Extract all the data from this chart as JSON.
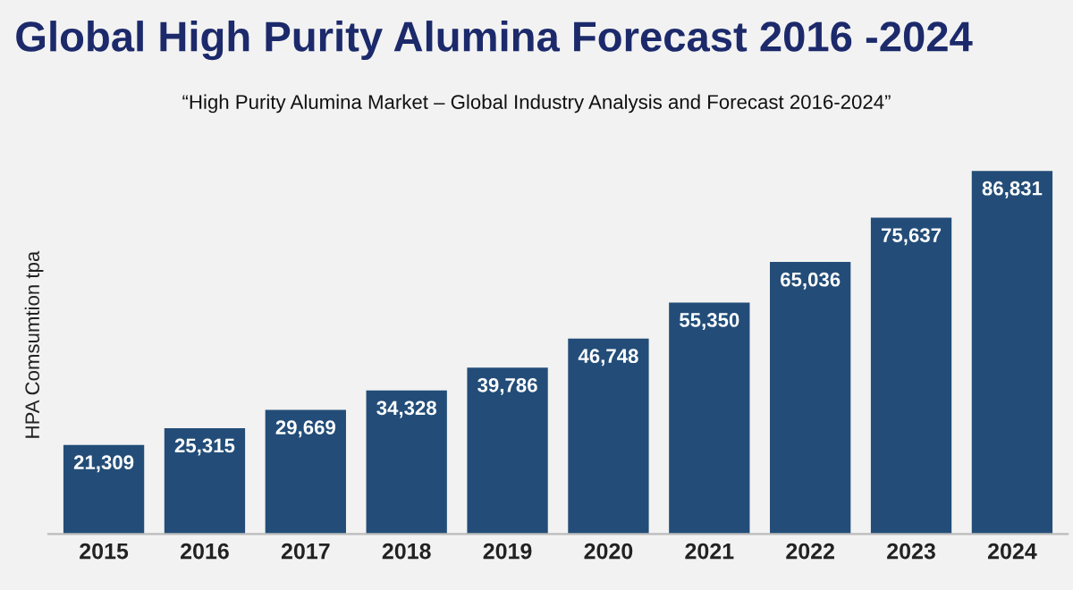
{
  "chart_data": {
    "type": "bar",
    "title": "Global High Purity Alumina Forecast 2016 -2024",
    "subtitle": "“High Purity Alumina Market – Global Industry Analysis and Forecast 2016-2024”",
    "ylabel": "HPA Comsumtion tpa",
    "categories": [
      "2015",
      "2016",
      "2017",
      "2018",
      "2019",
      "2020",
      "2021",
      "2022",
      "2023",
      "2024"
    ],
    "values": [
      21309,
      25315,
      29669,
      34328,
      39786,
      46748,
      55350,
      65036,
      75637,
      86831
    ],
    "value_labels": [
      "21,309",
      "25,315",
      "29,669",
      "34,328",
      "39,786",
      "46,748",
      "55,350",
      "65,036",
      "75,637",
      "86,831"
    ],
    "color": "#234d78",
    "grid": false,
    "legend": false
  }
}
